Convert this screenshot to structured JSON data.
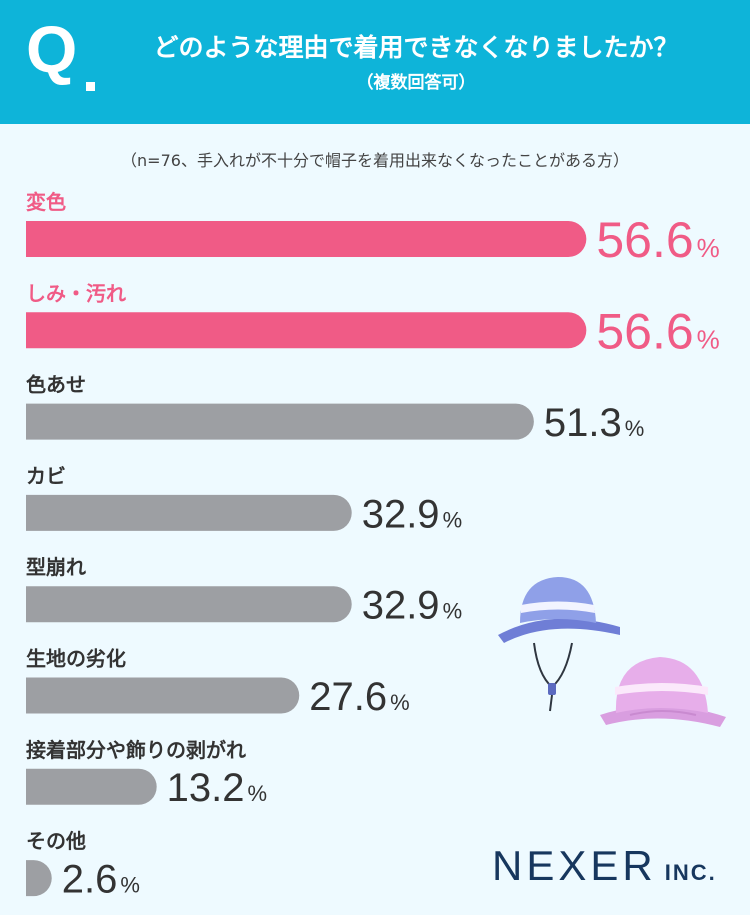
{
  "header": {
    "q_mark": "Q",
    "question": "どのような理由で着用できなくなりましたか？",
    "question_sub": "（複数回答可）"
  },
  "sample_note": "（n=76、手入れが不十分で帽子を着用出来なくなったことがある方）",
  "percent_sign": "%",
  "colors": {
    "header_bg": "#0eb4d9",
    "background": "#eefaff",
    "highlight": "#f05b86",
    "bar_gray": "#9d9fa3",
    "text_dark": "#333333",
    "logo": "#17375e"
  },
  "chart_data": {
    "type": "bar",
    "orientation": "horizontal",
    "categories": [
      "変色",
      "しみ・汚れ",
      "色あせ",
      "カビ",
      "型崩れ",
      "生地の劣化",
      "接着部分や飾りの剥がれ",
      "その他"
    ],
    "values": [
      56.6,
      56.6,
      51.3,
      32.9,
      32.9,
      27.6,
      13.2,
      2.6
    ],
    "value_labels": [
      "56.6",
      "56.6",
      "51.3",
      "32.9",
      "32.9",
      "27.6",
      "13.2",
      "2.6"
    ],
    "highlighted": [
      true,
      true,
      false,
      false,
      false,
      false,
      false,
      false
    ],
    "unit": "%",
    "xlim": [
      0,
      100
    ],
    "grid": false,
    "legend": "none"
  },
  "decor": {
    "icons": [
      "bucket-hat-blue-icon",
      "bucket-hat-pink-icon"
    ]
  },
  "logo": {
    "main": "NEXER",
    "suffix": "INC."
  }
}
